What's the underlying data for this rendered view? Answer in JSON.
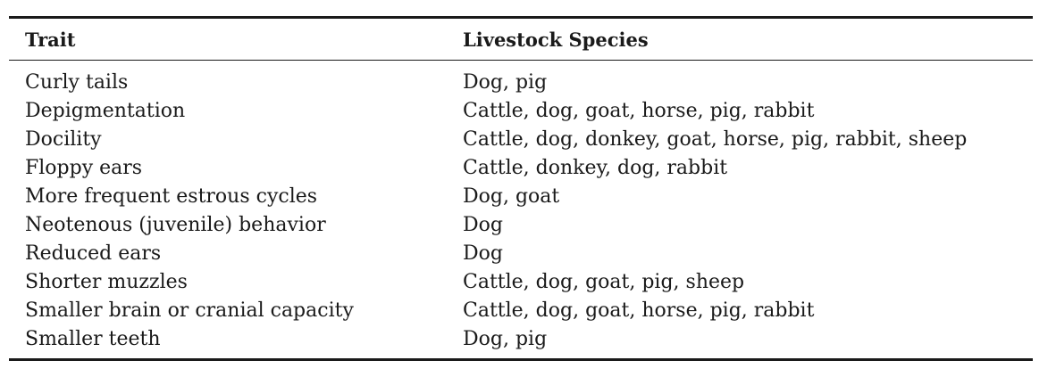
{
  "table": {
    "headers": {
      "trait": "Trait",
      "species": "Livestock Species"
    },
    "rows": [
      {
        "trait": "Curly tails",
        "species": "Dog, pig"
      },
      {
        "trait": "Depigmentation",
        "species": "Cattle, dog, goat, horse, pig, rabbit"
      },
      {
        "trait": "Docility",
        "species": "Cattle, dog, donkey, goat, horse, pig, rabbit, sheep"
      },
      {
        "trait": "Floppy ears",
        "species": "Cattle, donkey, dog, rabbit"
      },
      {
        "trait": "More frequent estrous cycles",
        "species": "Dog, goat"
      },
      {
        "trait": "Neotenous (juvenile) behavior",
        "species": "Dog"
      },
      {
        "trait": "Reduced ears",
        "species": "Dog"
      },
      {
        "trait": "Shorter muzzles",
        "species": "Cattle, dog, goat, pig, sheep"
      },
      {
        "trait": "Smaller brain or cranial capacity",
        "species": "Cattle, dog, goat, horse, pig, rabbit"
      },
      {
        "trait": "Smaller teeth",
        "species": "Dog, pig"
      }
    ]
  }
}
